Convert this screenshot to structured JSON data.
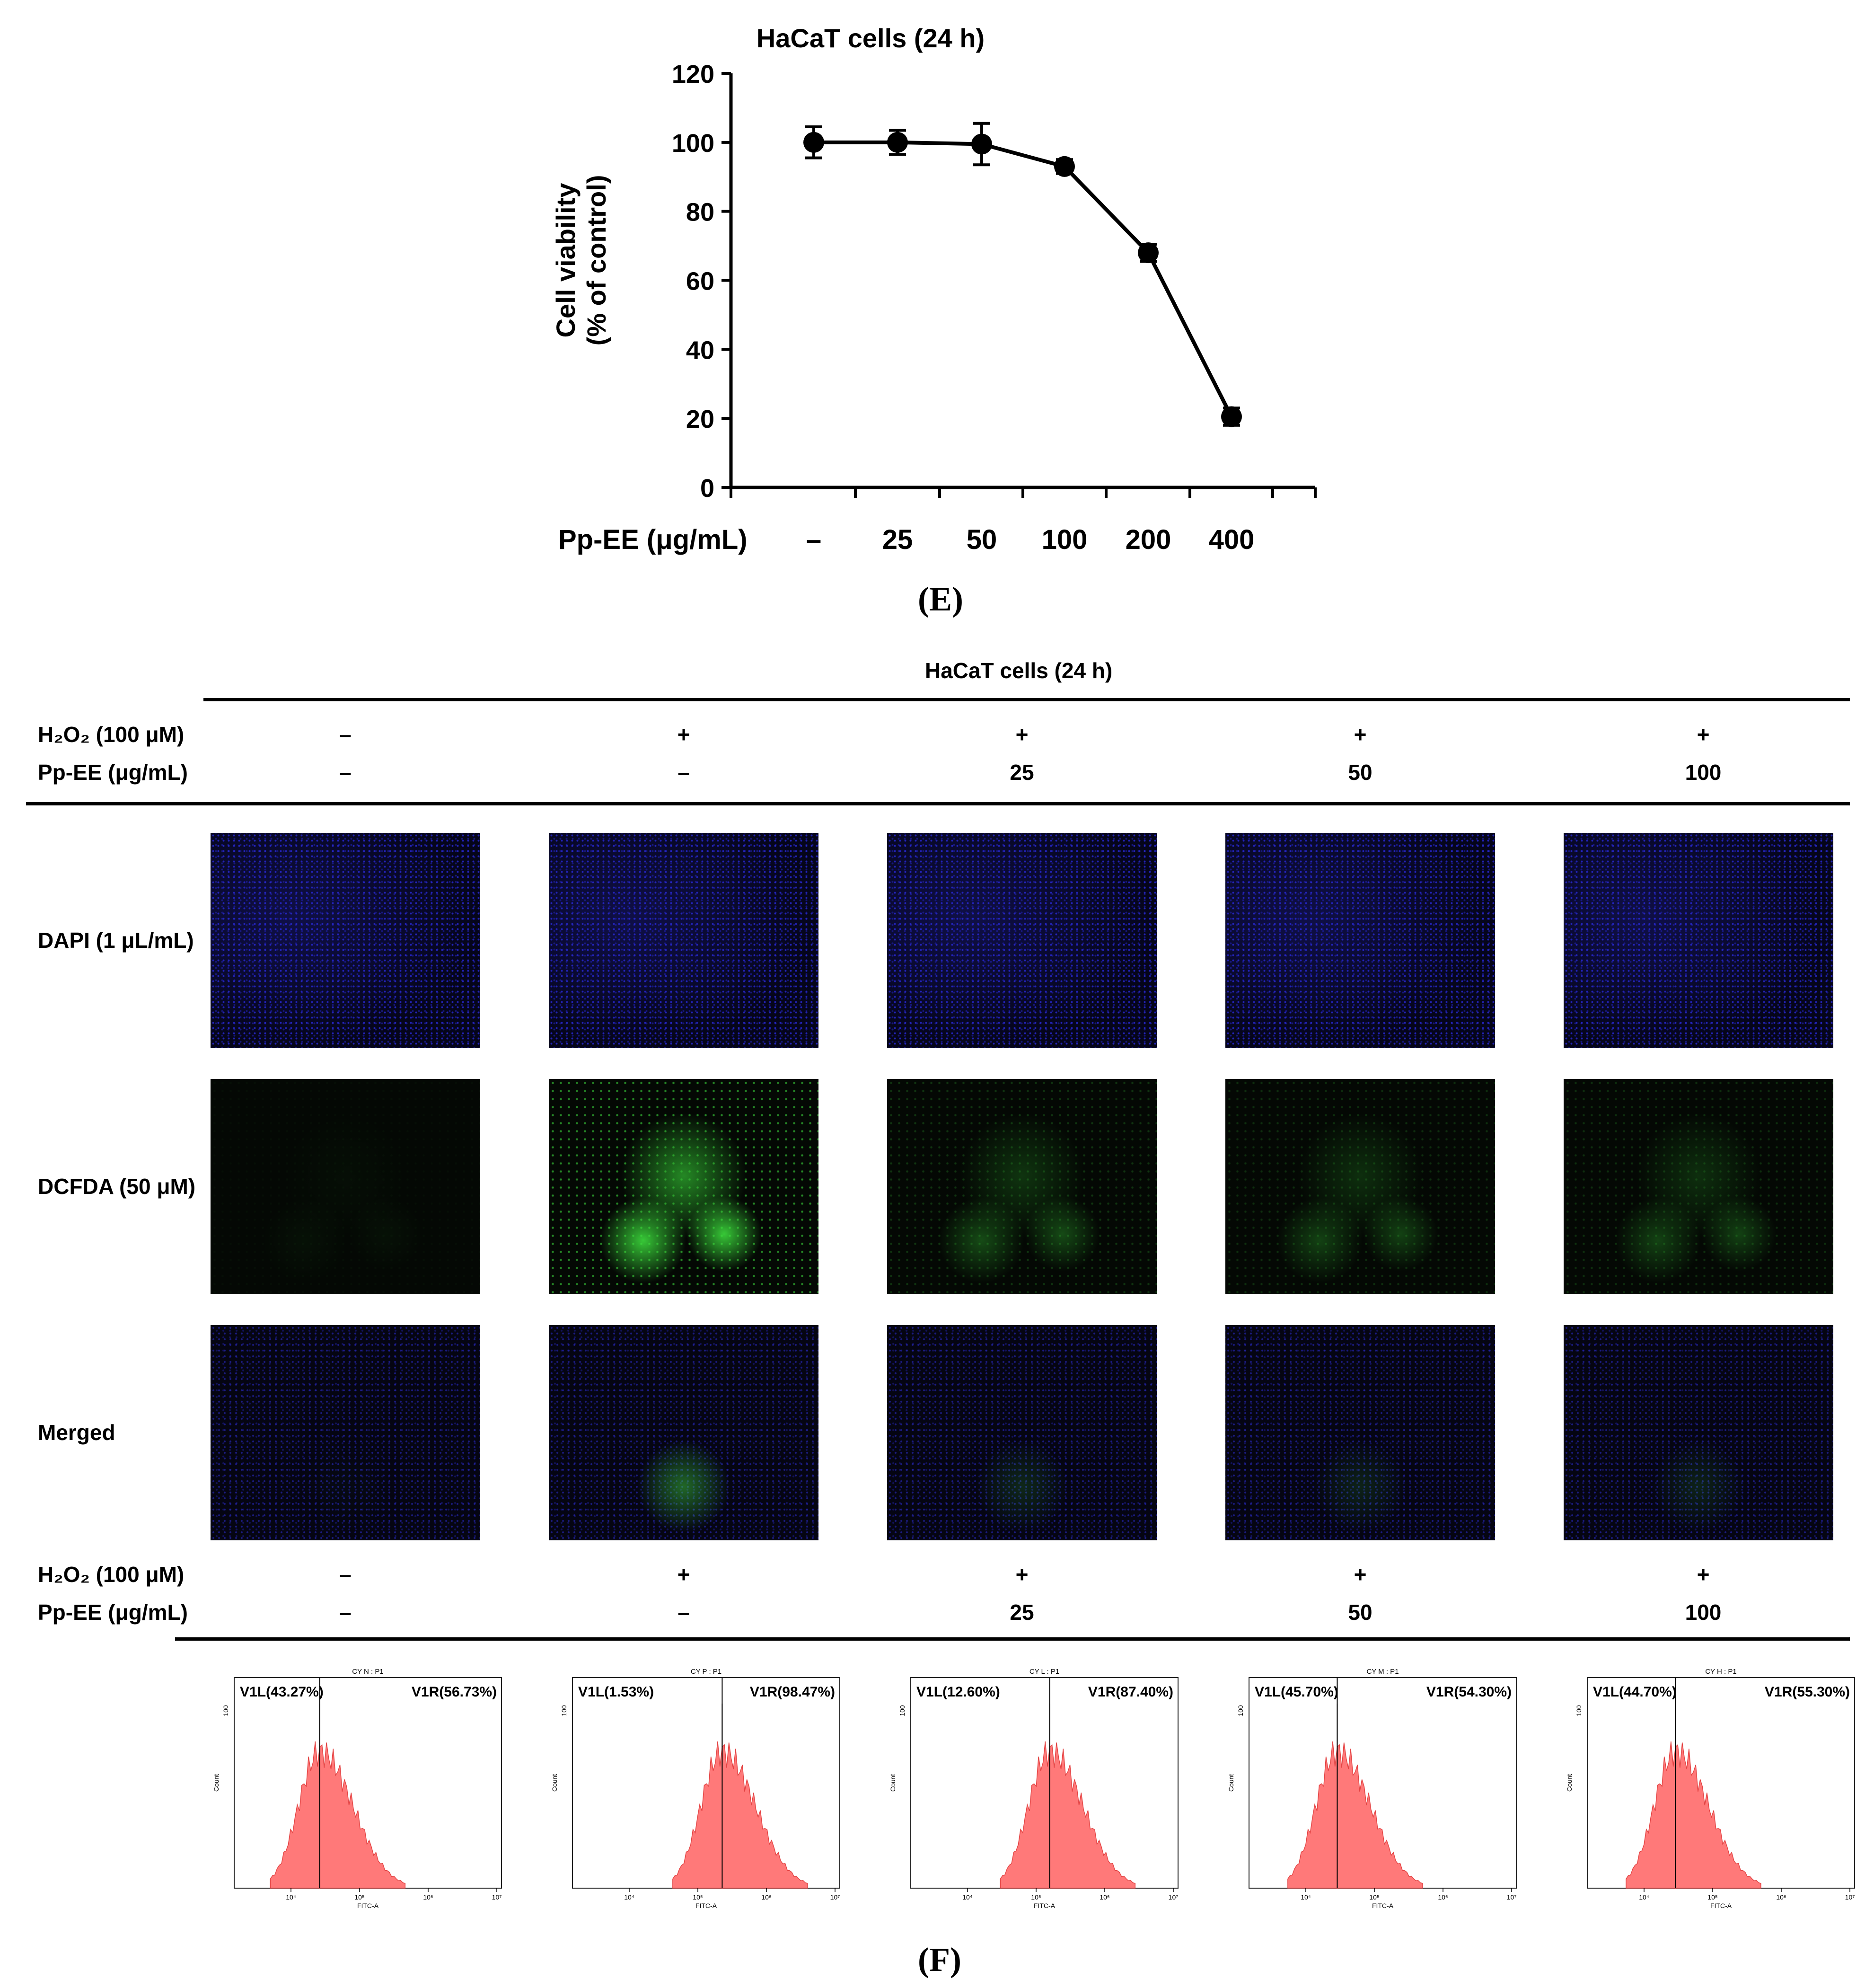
{
  "chart_data": {
    "type": "line",
    "title": "HaCaT cells (24 h)",
    "xlabel": "Pp-EE (μg/mL)",
    "ylabel": [
      "Cell viability",
      "(% of control)"
    ],
    "categories": [
      "–",
      "25",
      "50",
      "100",
      "200",
      "400"
    ],
    "series": [
      {
        "values": [
          100,
          100,
          99.5,
          93,
          68,
          20.5
        ],
        "errors": [
          4.5,
          3.5,
          6,
          2,
          2.5,
          2.5
        ]
      }
    ],
    "ylim": [
      0,
      120
    ],
    "yticks": [
      "0",
      "20",
      "40",
      "60",
      "80",
      "100",
      "120"
    ],
    "grid": false,
    "marker": "filled-circle",
    "color": "#000000"
  },
  "panel_labels": {
    "e": "(E)",
    "f": "(F)"
  },
  "panel_f": {
    "title": "HaCaT cells (24 h)",
    "row_h2o2_label": "H₂O₂ (100 μM)",
    "row_ppee_label": "Pp-EE (μg/mL)",
    "h2o2": [
      "–",
      "+",
      "+",
      "+",
      "+"
    ],
    "ppee": [
      "–",
      "–",
      "25",
      "50",
      "100"
    ],
    "image_rows": [
      {
        "label": "DAPI (1 μL/mL)",
        "stain": "dapi"
      },
      {
        "label": "DCFDA (50 μM)",
        "stain": "dcfda"
      },
      {
        "label": "Merged",
        "stain": "merged"
      }
    ],
    "green_intensity": [
      0.05,
      1.0,
      0.35,
      0.3,
      0.3
    ],
    "flow": [
      {
        "name": "CY N : P1",
        "v1l": "V1L(43.27%)",
        "v1r": "V1R(56.73%)",
        "ymax_label": "100",
        "peak": 0.32
      },
      {
        "name": "CY P : P1",
        "v1l": "V1L(1.53%)",
        "v1r": "V1R(98.47%)",
        "ymax_label": "100",
        "peak": 0.56
      },
      {
        "name": "CY L : P1",
        "v1l": "V1L(12.60%)",
        "v1r": "V1R(87.40%)",
        "ymax_label": "100",
        "peak": 0.52
      },
      {
        "name": "CY M : P1",
        "v1l": "V1L(45.70%)",
        "v1r": "V1R(54.30%)",
        "ymax_label": "100",
        "peak": 0.33
      },
      {
        "name": "CY H : P1",
        "v1l": "V1L(44.70%)",
        "v1r": "V1R(55.30%)",
        "ymax_label": "100",
        "peak": 0.33
      }
    ],
    "flow_xlabel": "FITC-A",
    "flow_ylabel": "Count",
    "flow_xticks": [
      "10⁴",
      "10⁵",
      "10⁶",
      "10⁷"
    ],
    "flow_color": "#ff6b6b"
  }
}
